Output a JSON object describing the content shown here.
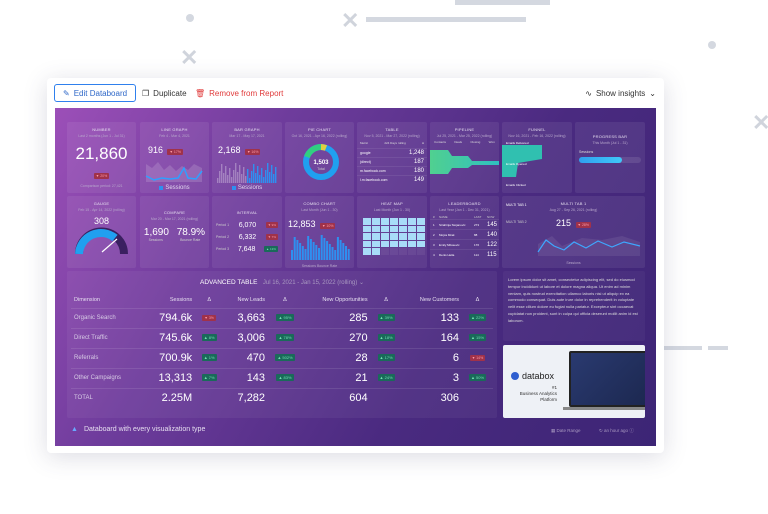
{
  "toolbar": {
    "edit": "Edit Databoard",
    "duplicate": "Duplicate",
    "remove": "Remove from Report",
    "insights": "Show insights"
  },
  "tiles": {
    "number": {
      "title": "NUMBER",
      "range": "Last 2 months (Jun 1 - Jul 31)",
      "value": "21,860",
      "change": "▼ 20%",
      "comparison": "Comparison period: 27,421"
    },
    "line": {
      "title": "LINE GRAPH",
      "range": "Feb 4 - Mar 4, 2021",
      "value": "916",
      "change": "▼ 17%",
      "legend": "Sessions"
    },
    "bar": {
      "title": "BAR GRAPH",
      "range": "Mar 17 - May 17, 2021",
      "value": "2,168",
      "change": "▼ 16%",
      "legend": "Sessions"
    },
    "pie": {
      "title": "PIE CHART",
      "range": "Oct 16, 2021 - Apr 16, 2022 (rolling)",
      "value": "1,503",
      "label": "Total"
    },
    "table": {
      "title": "TABLE",
      "range": "Nov 5, 2021 - Mar 27, 2022 (rolling)",
      "header": [
        "Metric",
        "224 Days rolling",
        "Δ"
      ],
      "rows": [
        [
          "google",
          "1,248"
        ],
        [
          "(direct)",
          "187"
        ],
        [
          "m.facebook.com",
          "180"
        ],
        [
          "l.m.facebook.com",
          "149"
        ]
      ]
    },
    "pipeline": {
      "title": "PIPELINE",
      "range": "Jul 25, 2021 - Mar 25, 2022 (rolling)",
      "stages": [
        "Contacts",
        "Deals",
        "Closing",
        "Won"
      ]
    },
    "funnel": {
      "title": "FUNNEL",
      "range": "Nov 16, 2021 - Feb 16, 2022 (rolling)",
      "steps": [
        "Emails Delivered",
        "Emails Opened",
        "Emails Clicked"
      ]
    },
    "progress": {
      "title": "PROGRESS BAR",
      "range": "This Month (Jul 1 - 31)",
      "label": "Sessions",
      "fraction": 0.7
    },
    "gauge": {
      "title": "GAUGE",
      "range": "Feb 15 - Apr 14, 2022 (rolling)",
      "value": "308",
      "fraction": 0.72
    },
    "compare": {
      "title": "COMPARE",
      "range": "Mar 20 - Mar 17, 2021 (rolling)",
      "v1": "1,690",
      "l1": "Sessions",
      "v2": "78.9%",
      "l2": "Bounce Rate"
    },
    "interval": {
      "title": "INTERVAL",
      "rows": [
        [
          "Period 1",
          "6,070",
          "▼ 9%"
        ],
        [
          "Period 2",
          "6,332",
          "▼ 7%"
        ],
        [
          "Period 3",
          "7,648",
          "▲ 13%"
        ]
      ]
    },
    "combo": {
      "title": "COMBO CHART",
      "range": "Last Month (Jun 1 - 30)",
      "value": "12,853",
      "change": "▼ 10%",
      "legend": [
        "Sessions",
        "Bounce Rate"
      ]
    },
    "heatmap": {
      "title": "HEAT MAP",
      "range": "Last Month (Jun 1 - 30)"
    },
    "leaderboard": {
      "title": "LEADERBOARD",
      "range": "Last Year (Jan 1 - Dec 31, 2021)",
      "header": [
        "#",
        "NAME",
        "LAST",
        "NOW"
      ],
      "rows": [
        [
          "1",
          "Strahinja Stojanovic",
          "273",
          "145"
        ],
        [
          "2",
          "Mojca Mrak",
          "88",
          "140"
        ],
        [
          "3",
          "Emily Milosevic",
          "176",
          "122"
        ],
        [
          "4",
          "Denis Hella",
          "114",
          "115"
        ]
      ]
    },
    "multitab": {
      "title": "MULTI TAB 1",
      "range": "Aug 27 - Sep 26, 2021 (rolling)",
      "value": "215",
      "change": "▼ 28%",
      "tabs": [
        "MULTI TAB 1",
        "MULTI TAB 2"
      ],
      "legend": "Sessions"
    }
  },
  "advanced": {
    "title": "ADVANCED TABLE",
    "range": "Jul 16, 2021 - Jan 15, 2022 (rolling)",
    "headers": [
      "Dimension",
      "Sessions",
      "Δ",
      "New Leads",
      "Δ",
      "New Opportunities",
      "Δ",
      "New Customers",
      "Δ"
    ],
    "rows": [
      [
        "Organic Search",
        "794.6k",
        "▼ 3%",
        "3,663",
        "▲ 95%",
        "285",
        "▲ 39%",
        "133",
        "▲ 22%"
      ],
      [
        "Direct Traffic",
        "745.6k",
        "▲ 8%",
        "3,006",
        "▲ 78%",
        "270",
        "▲ 18%",
        "164",
        "▲ 15%"
      ],
      [
        "Referrals",
        "700.9k",
        "▲ 1%",
        "470",
        "▲ 502%",
        "28",
        "▲ 17%",
        "6",
        "▼ 14%"
      ],
      [
        "Other Campaigns",
        "13,313",
        "▲ 7%",
        "143",
        "▲ 83%",
        "21",
        "▲ 24%",
        "3",
        "▲ 50%"
      ]
    ],
    "total": [
      "TOTAL",
      "2.25M",
      "7,282",
      "604",
      "306"
    ]
  },
  "text_panel": "Lorem ipsum dolor sit amet, consectetur adipiscing elit, sed do eiusmod tempor incididunt ut labore et dolore magna aliqua. Ut enim ad minim veniam, quis nostrud exercitation ullamco laboris nisi ut aliquip ex ea commodo consequat. Duis aute irure dolor in reprehenderit in voluptate velit esse cillum dolore eu fugiat nulla pariatur. Excepteur sint occaecat cupidatat non proident, sunt in culpa qui officia deserunt mollit anim id est laborum.",
  "promo": {
    "brand": "databox",
    "line1": "#1",
    "line2": "Business Analytics",
    "line3": "Platform"
  },
  "footer": {
    "title": "Databoard with every visualization type",
    "date_range": "Date Range",
    "updated": "an hour ago"
  }
}
